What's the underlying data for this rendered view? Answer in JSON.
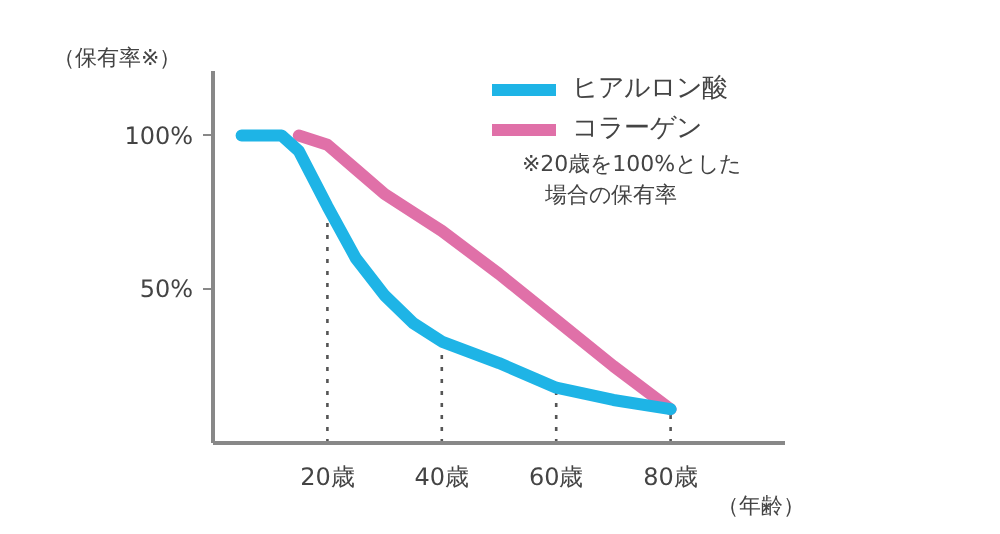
{
  "chart_data": {
    "type": "line",
    "xlabel": "（年齢）",
    "ylabel": "（保有率※）",
    "x": [
      5,
      10,
      12,
      15,
      20,
      25,
      30,
      35,
      40,
      50,
      60,
      70,
      80
    ],
    "series": [
      {
        "name": "ヒアルロン酸",
        "color": "#1eb4e6",
        "values": [
          100,
          100,
          100,
          95,
          77,
          60,
          48,
          39,
          33,
          26,
          18,
          14,
          11
        ]
      },
      {
        "name": "コラーゲン",
        "color": "#e070a8",
        "values": [
          null,
          null,
          null,
          100,
          97,
          89,
          81,
          75,
          69,
          55,
          40,
          25,
          11
        ]
      }
    ],
    "xlim": [
      0,
      100
    ],
    "ylim": [
      0,
      121
    ],
    "xticks": [
      {
        "value": 20,
        "label": "20歳"
      },
      {
        "value": 40,
        "label": "40歳"
      },
      {
        "value": 60,
        "label": "60歳"
      },
      {
        "value": 80,
        "label": "80歳"
      }
    ],
    "yticks": [
      {
        "value": 50,
        "label": "50%"
      },
      {
        "value": 100,
        "label": "100%"
      }
    ],
    "ref_lines": [
      {
        "axis": "x",
        "value": 20,
        "color": "#555555",
        "line_style": "dotted"
      },
      {
        "axis": "x",
        "value": 40,
        "color": "#555555",
        "line_style": "dotted"
      },
      {
        "axis": "x",
        "value": 60,
        "color": "#555555",
        "line_style": "dotted"
      },
      {
        "axis": "x",
        "value": 80,
        "color": "#555555",
        "line_style": "dotted"
      }
    ],
    "annotations": [
      "※20歳を100%とした場合の保有率"
    ],
    "grid": false,
    "legend": "top right",
    "marker": "none",
    "line_style": "solid"
  }
}
